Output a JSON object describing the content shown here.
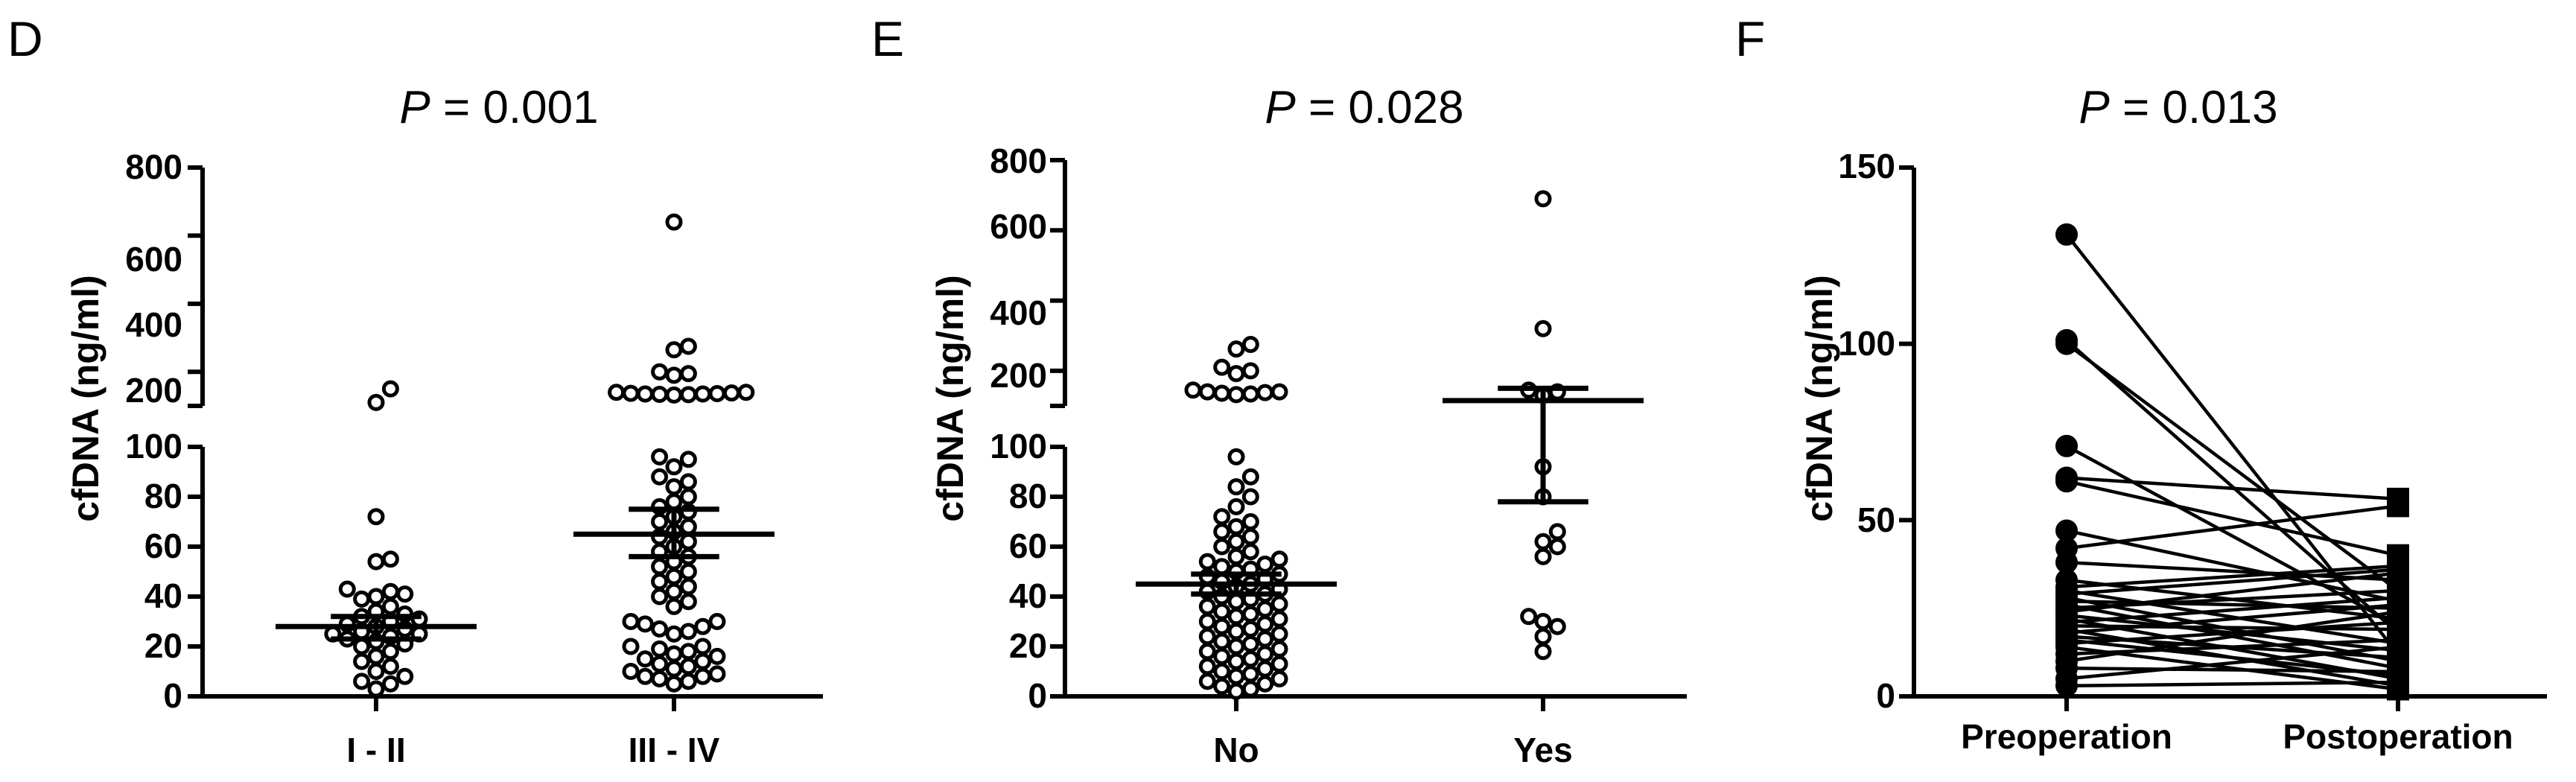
{
  "chart_data": [
    {
      "panel": "D",
      "p_italic": "P",
      "p_rest": " = 0.001",
      "type": "scatter",
      "ylabel": "cfDNA (ng/ml)",
      "broken_axis": true,
      "lower_range": [
        0,
        100
      ],
      "upper_range": [
        100,
        800
      ],
      "lower_ticks": [
        0,
        20,
        40,
        60,
        80,
        100
      ],
      "upper_ticks": [
        200,
        400,
        600,
        800
      ],
      "categories": [
        "I - II",
        "III - IV"
      ],
      "groups": [
        {
          "category": "I - II",
          "mean": 28,
          "sem_low": 23,
          "sem_high": 32,
          "points": [
            150,
            110,
            72,
            55,
            54,
            43,
            42,
            41,
            40,
            39,
            36,
            34,
            33,
            32,
            31,
            30,
            29,
            28,
            27,
            26,
            25,
            25,
            24,
            23,
            22,
            21,
            20,
            18,
            16,
            14,
            12,
            10,
            8,
            6,
            5,
            3
          ]
        },
        {
          "category": "III - IV",
          "mean": 65,
          "sem_low": 56,
          "sem_high": 75,
          "points": [
            640,
            275,
            265,
            200,
            195,
            190,
            140,
            140,
            138,
            137,
            136,
            135,
            135,
            134,
            133,
            132,
            96,
            95,
            92,
            88,
            86,
            84,
            80,
            78,
            76,
            74,
            72,
            70,
            68,
            66,
            64,
            62,
            60,
            58,
            56,
            54,
            52,
            50,
            48,
            46,
            44,
            42,
            40,
            38,
            36,
            30,
            30,
            29,
            28,
            27,
            26,
            25,
            20,
            20,
            19,
            18,
            17,
            16,
            15,
            14,
            13,
            12,
            11,
            10,
            9,
            8,
            8,
            7,
            6,
            5
          ]
        }
      ]
    },
    {
      "panel": "E",
      "p_italic": "P",
      "p_rest": " = 0.028",
      "type": "scatter",
      "ylabel": "cfDNA (ng/ml)",
      "broken_axis": true,
      "lower_range": [
        0,
        100
      ],
      "upper_range": [
        100,
        800
      ],
      "lower_ticks": [
        0,
        20,
        40,
        60,
        80,
        100
      ],
      "upper_ticks": [
        200,
        400,
        600,
        800
      ],
      "categories": [
        "No",
        "Yes"
      ],
      "groups": [
        {
          "category": "No",
          "mean": 45,
          "sem_low": 41,
          "sem_high": 49,
          "points": [
            275,
            262,
            210,
            200,
            192,
            145,
            140,
            140,
            138,
            136,
            134,
            132,
            96,
            88,
            84,
            80,
            76,
            72,
            70,
            68,
            66,
            64,
            62,
            60,
            58,
            56,
            55,
            54,
            53,
            52,
            51,
            50,
            49,
            48,
            47,
            46,
            45,
            44,
            43,
            42,
            41,
            40,
            39,
            38,
            37,
            36,
            35,
            34,
            33,
            32,
            31,
            30,
            29,
            28,
            27,
            26,
            25,
            24,
            23,
            22,
            21,
            20,
            19,
            18,
            17,
            16,
            15,
            14,
            13,
            12,
            11,
            10,
            9,
            8,
            7,
            6,
            5,
            4,
            3,
            2
          ]
        },
        {
          "category": "Yes",
          "mean": 115,
          "sem_low": 78,
          "sem_high": 150,
          "points": [
            690,
            320,
            145,
            140,
            130,
            92,
            80,
            66,
            62,
            60,
            56,
            32,
            30,
            28,
            24,
            18
          ]
        }
      ]
    },
    {
      "panel": "F",
      "p_italic": "P",
      "p_rest": " = 0.013",
      "type": "line",
      "ylabel": "cfDNA (ng/ml)",
      "ylim": [
        0,
        150
      ],
      "yticks": [
        0,
        50,
        100,
        150
      ],
      "categories": [
        "Preoperation",
        "Postoperation"
      ],
      "pairs": [
        [
          131,
          12
        ],
        [
          101,
          18
        ],
        [
          100,
          30
        ],
        [
          71,
          20
        ],
        [
          62,
          56
        ],
        [
          61,
          40
        ],
        [
          47,
          27
        ],
        [
          42,
          54
        ],
        [
          38,
          33
        ],
        [
          33,
          22
        ],
        [
          31,
          37
        ],
        [
          30,
          15
        ],
        [
          29,
          36
        ],
        [
          28,
          10
        ],
        [
          27,
          25
        ],
        [
          26,
          8
        ],
        [
          25,
          30
        ],
        [
          24,
          35
        ],
        [
          23,
          13
        ],
        [
          22,
          5
        ],
        [
          21,
          28
        ],
        [
          20,
          19
        ],
        [
          19,
          3
        ],
        [
          18,
          26
        ],
        [
          17,
          11
        ],
        [
          16,
          6
        ],
        [
          15,
          21
        ],
        [
          14,
          2
        ],
        [
          12,
          16
        ],
        [
          10,
          24
        ],
        [
          8,
          7
        ],
        [
          5,
          14
        ],
        [
          3,
          4
        ]
      ]
    }
  ]
}
